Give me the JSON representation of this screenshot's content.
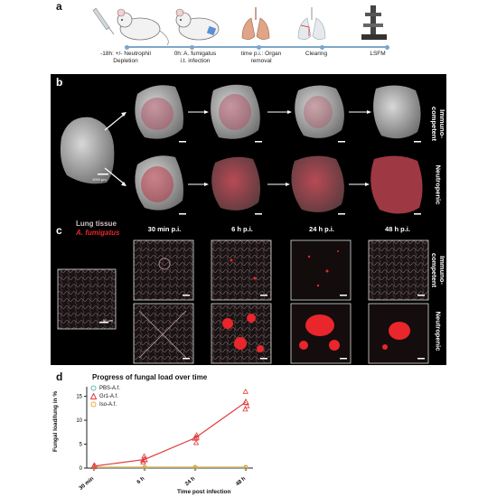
{
  "panels": {
    "a": "a",
    "b": "b",
    "c": "c",
    "d": "d"
  },
  "timeline": {
    "steps": [
      {
        "label": "-18h: +/- Neutrophil\nDepletion"
      },
      {
        "label": "0h: A. fumigatus\ni.t. infection"
      },
      {
        "label": "time p.i.: Organ\nremoval"
      },
      {
        "label": "Clearing"
      },
      {
        "label": "LSFM"
      }
    ]
  },
  "panel_b": {
    "row_labels": [
      "Immuno-\ncompetent",
      "Neutropenic"
    ],
    "scale_label": "1000 µm"
  },
  "panel_c": {
    "legend_tissue": "Lung tissue",
    "legend_fungus": "A. fumigatus",
    "columns": [
      "30 min p.i.",
      "6 h p.i.",
      "24 h p.i.",
      "48 h p.i."
    ],
    "row_labels": [
      "Immuno-\ncompetent",
      "Neutropenic"
    ],
    "scale_label": "50 µm"
  },
  "colors": {
    "tissue": "#d9c5c8",
    "fungus": "#e8262b",
    "pbs": "#5fb7b2",
    "gr1": "#e33b3b",
    "iso": "#f0a23a"
  },
  "chart_data": {
    "type": "line",
    "title": "Progress of fungal load over time",
    "xlabel": "Time post infection",
    "ylabel": "Fungal load/lung in %",
    "categories": [
      "30 min",
      "6 h",
      "24 h",
      "48 h"
    ],
    "ylim": [
      0,
      17
    ],
    "yticks": [
      0,
      5,
      10,
      15
    ],
    "legend_position": "top-left",
    "series": [
      {
        "name": "PBS-A.f.",
        "color": "#5fb7b2",
        "marker": "circle",
        "values": [
          0.1,
          0.1,
          0.1,
          0.1
        ]
      },
      {
        "name": "Gr1-A.f.",
        "color": "#e33b3b",
        "marker": "triangle",
        "values": [
          0.4,
          1.8,
          6.3,
          13.8
        ]
      },
      {
        "name": "Iso-A.f.",
        "color": "#f0a23a",
        "marker": "circle",
        "values": [
          0.2,
          0.2,
          0.2,
          0.2
        ]
      }
    ],
    "points": {
      "Gr1-A.f.": [
        [
          0,
          0.3
        ],
        [
          0,
          0.6
        ],
        [
          1,
          1.2
        ],
        [
          1,
          2.5
        ],
        [
          1,
          1.6
        ],
        [
          2,
          5.3
        ],
        [
          2,
          6.9
        ],
        [
          2,
          6.4
        ],
        [
          3,
          16.0
        ],
        [
          3,
          13.0
        ],
        [
          3,
          12.3
        ]
      ]
    }
  }
}
